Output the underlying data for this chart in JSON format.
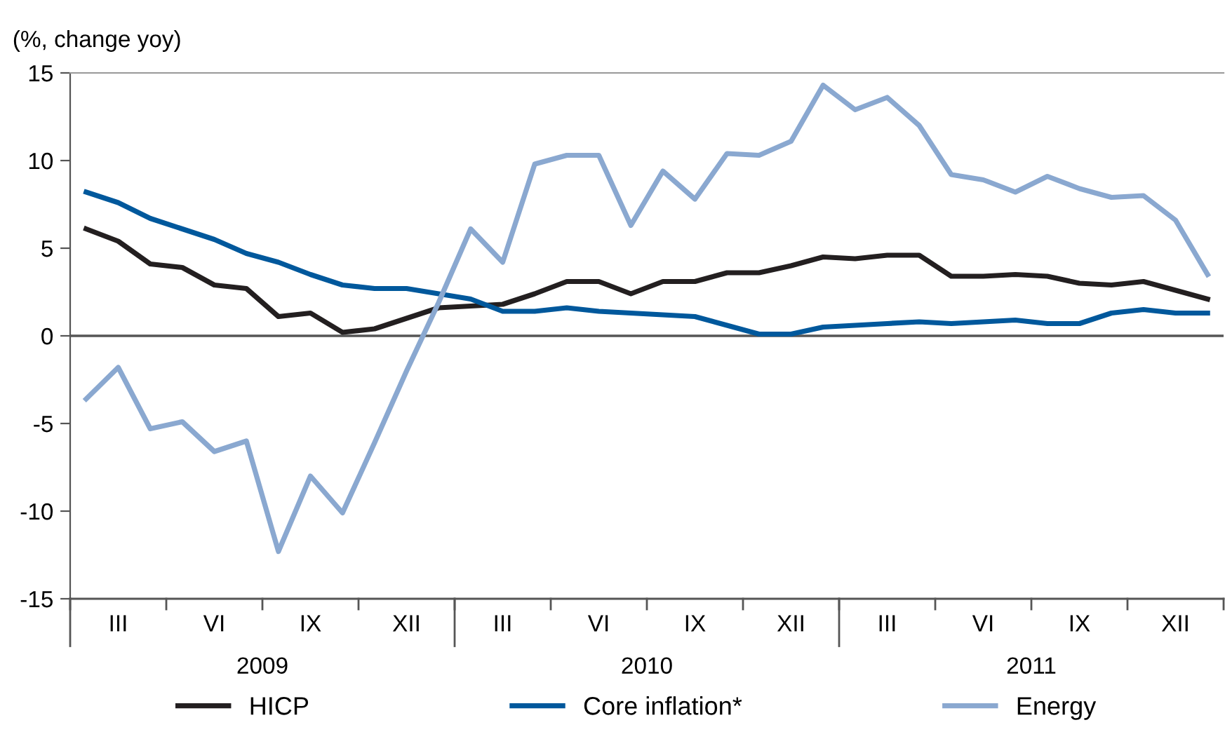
{
  "chart_data": {
    "type": "line",
    "ylabel": "(%, change yoy)",
    "categories": [
      null,
      "III",
      null,
      null,
      "VI",
      null,
      null,
      "IX",
      null,
      null,
      "XII",
      null,
      null,
      "III",
      null,
      null,
      "VI",
      null,
      null,
      "IX",
      null,
      null,
      "XII",
      null,
      null,
      "III",
      null,
      null,
      "VI",
      null,
      null,
      "IX",
      null,
      null,
      "XII",
      null
    ],
    "series": [
      {
        "name": "HICP",
        "color": "#231f20",
        "values": [
          6.1,
          5.4,
          4.1,
          3.9,
          2.9,
          2.7,
          1.1,
          1.3,
          0.2,
          0.4,
          1.0,
          1.6,
          1.7,
          1.8,
          2.4,
          3.1,
          3.1,
          2.4,
          3.1,
          3.1,
          3.6,
          3.6,
          4.0,
          4.5,
          4.4,
          4.6,
          4.6,
          3.4,
          3.4,
          3.5,
          3.4,
          3.0,
          2.9,
          3.1,
          2.6,
          2.1
        ]
      },
      {
        "name": "Core inflation*",
        "color": "#00589c",
        "values": [
          8.2,
          7.6,
          6.7,
          6.1,
          5.5,
          4.7,
          4.2,
          3.5,
          2.9,
          2.7,
          2.7,
          2.4,
          2.1,
          1.4,
          1.4,
          1.6,
          1.4,
          1.3,
          1.2,
          1.1,
          0.6,
          0.1,
          0.1,
          0.5,
          0.6,
          0.7,
          0.8,
          0.7,
          0.8,
          0.9,
          0.7,
          0.7,
          1.3,
          1.5,
          1.3,
          1.3
        ]
      },
      {
        "name": "Energy",
        "color": "#8aa8d0",
        "values": [
          -3.6,
          -1.8,
          -5.3,
          -4.9,
          -6.6,
          -6.0,
          -12.3,
          -8.0,
          -10.1,
          -6.1,
          -2.0,
          1.9,
          6.1,
          4.2,
          9.8,
          10.3,
          10.3,
          6.3,
          9.4,
          7.8,
          10.4,
          10.3,
          11.1,
          14.3,
          12.9,
          13.6,
          12.0,
          9.2,
          8.9,
          8.2,
          9.1,
          8.4,
          7.9,
          8.0,
          6.6,
          3.5
        ]
      }
    ],
    "ylim": [
      -15,
      15
    ],
    "yticks": [
      -15,
      -10,
      -5,
      0,
      5,
      10,
      15
    ],
    "ref_lines": [
      {
        "axis": "y",
        "value": 0,
        "color": "#555555"
      }
    ],
    "annotations": [
      "2009",
      "2010",
      "2011"
    ],
    "legend": "bottom",
    "grid": false,
    "marker": "none",
    "line_style": "solid"
  }
}
